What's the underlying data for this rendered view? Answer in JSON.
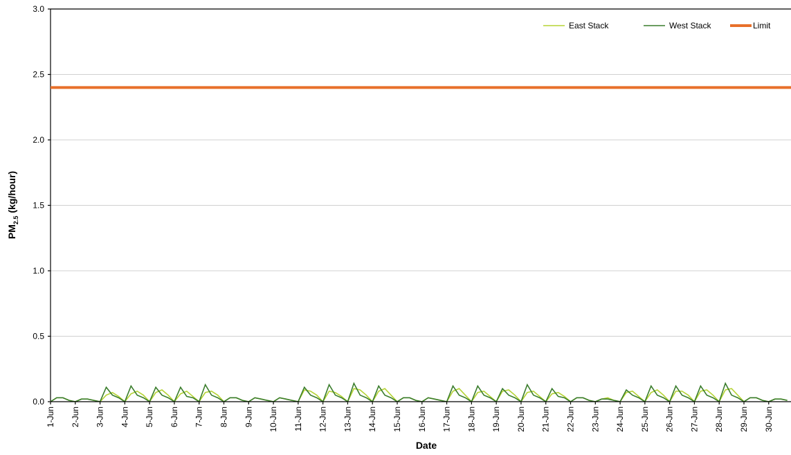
{
  "chart_data": {
    "type": "line",
    "x_label": "Date",
    "y_label": {
      "main": "PM",
      "sub": "2.5",
      "unit": "(kg/hour)"
    },
    "xlim": [
      1,
      30.9
    ],
    "ylim": [
      0,
      3
    ],
    "yticks": [
      {
        "value": 0,
        "label": "0.0"
      },
      0.5,
      {
        "value": 1,
        "label": "1.0"
      },
      1.5,
      {
        "value": 2,
        "label": "2.0"
      },
      2.5,
      {
        "value": 3,
        "label": "3.0"
      }
    ],
    "xticks": [
      {
        "value": 1,
        "label": "1-Jun"
      },
      {
        "value": 2,
        "label": "2-Jun"
      },
      {
        "value": 3,
        "label": "3-Jun"
      },
      {
        "value": 4,
        "label": "4-Jun"
      },
      {
        "value": 5,
        "label": "5-Jun"
      },
      {
        "value": 6,
        "label": "6-Jun"
      },
      {
        "value": 7,
        "label": "7-Jun"
      },
      {
        "value": 8,
        "label": "8-Jun"
      },
      {
        "value": 9,
        "label": "9-Jun"
      },
      {
        "value": 10,
        "label": "10-Jun"
      },
      {
        "value": 11,
        "label": "11-Jun"
      },
      {
        "value": 12,
        "label": "12-Jun"
      },
      {
        "value": 13,
        "label": "13-Jun"
      },
      {
        "value": 14,
        "label": "14-Jun"
      },
      {
        "value": 15,
        "label": "15-Jun"
      },
      {
        "value": 16,
        "label": "16-Jun"
      },
      {
        "value": 17,
        "label": "17-Jun"
      },
      {
        "value": 18,
        "label": "18-Jun"
      },
      {
        "value": 19,
        "label": "19-Jun"
      },
      {
        "value": 20,
        "label": "20-Jun"
      },
      {
        "value": 21,
        "label": "21-Jun"
      },
      {
        "value": 22,
        "label": "22-Jun"
      },
      {
        "value": 23,
        "label": "23-Jun"
      },
      {
        "value": 24,
        "label": "24-Jun"
      },
      {
        "value": 25,
        "label": "25-Jun"
      },
      {
        "value": 26,
        "label": "26-Jun"
      },
      {
        "value": 27,
        "label": "27-Jun"
      },
      {
        "value": 28,
        "label": "28-Jun"
      },
      {
        "value": 29,
        "label": "29-Jun"
      },
      {
        "value": 30,
        "label": "30-Jun"
      }
    ],
    "grid": true,
    "legend": "top-right",
    "x": [
      1,
      1.25,
      1.5,
      1.75,
      2,
      2.25,
      2.5,
      2.75,
      3,
      3.25,
      3.5,
      3.75,
      4,
      4.25,
      4.5,
      4.75,
      5,
      5.25,
      5.5,
      5.75,
      6,
      6.25,
      6.5,
      6.75,
      7,
      7.25,
      7.5,
      7.75,
      8,
      8.25,
      8.5,
      8.75,
      9,
      9.25,
      9.5,
      9.75,
      10,
      10.25,
      10.5,
      10.75,
      11,
      11.25,
      11.5,
      11.75,
      12,
      12.25,
      12.5,
      12.75,
      13,
      13.25,
      13.5,
      13.75,
      14,
      14.25,
      14.5,
      14.75,
      15,
      15.25,
      15.5,
      15.75,
      16,
      16.25,
      16.5,
      16.75,
      17,
      17.25,
      17.5,
      17.75,
      18,
      18.25,
      18.5,
      18.75,
      19,
      19.25,
      19.5,
      19.75,
      20,
      20.25,
      20.5,
      20.75,
      21,
      21.25,
      21.5,
      21.75,
      22,
      22.25,
      22.5,
      22.75,
      23,
      23.25,
      23.5,
      23.75,
      24,
      24.25,
      24.5,
      24.75,
      25,
      25.25,
      25.5,
      25.75,
      26,
      26.25,
      26.5,
      26.75,
      27,
      27.25,
      27.5,
      27.75,
      28,
      28.25,
      28.5,
      28.75,
      29,
      29.25,
      29.5,
      29.75,
      30,
      30.25,
      30.5,
      30.75
    ],
    "series": [
      {
        "name": "East Stack",
        "color": "#b5d334",
        "values": [
          0,
          0.03,
          0.03,
          0.01,
          0,
          0.02,
          0.02,
          0.01,
          0,
          0.05,
          0.07,
          0.04,
          0,
          0.06,
          0.08,
          0.05,
          0,
          0.07,
          0.09,
          0.05,
          0,
          0.06,
          0.08,
          0.04,
          0,
          0.07,
          0.08,
          0.05,
          0,
          0.03,
          0.03,
          0.01,
          0,
          0.03,
          0.02,
          0.01,
          0,
          0.03,
          0.02,
          0.01,
          0,
          0.09,
          0.08,
          0.05,
          0,
          0.08,
          0.07,
          0.04,
          0,
          0.1,
          0.09,
          0.05,
          0,
          0.08,
          0.1,
          0.05,
          0,
          0.03,
          0.03,
          0.01,
          0,
          0.03,
          0.02,
          0.01,
          0,
          0.08,
          0.1,
          0.05,
          0,
          0.07,
          0.08,
          0.04,
          0,
          0.08,
          0.09,
          0.05,
          0,
          0.07,
          0.08,
          0.04,
          0,
          0.06,
          0.07,
          0.04,
          0,
          0.03,
          0.03,
          0.01,
          0,
          0.02,
          0.03,
          0.01,
          0,
          0.07,
          0.08,
          0.04,
          0,
          0.07,
          0.09,
          0.05,
          0,
          0.08,
          0.08,
          0.05,
          0,
          0.08,
          0.09,
          0.05,
          0,
          0.09,
          0.1,
          0.05,
          0,
          0.03,
          0.03,
          0.01,
          0,
          0.02,
          0.02,
          0.01
        ]
      },
      {
        "name": "West Stack",
        "color": "#3a7d2c",
        "values": [
          0,
          0.03,
          0.03,
          0.01,
          0,
          0.02,
          0.02,
          0.01,
          0,
          0.11,
          0.05,
          0.03,
          0,
          0.12,
          0.05,
          0.03,
          0,
          0.11,
          0.05,
          0.03,
          0,
          0.11,
          0.04,
          0.03,
          0,
          0.13,
          0.05,
          0.03,
          0,
          0.03,
          0.03,
          0.01,
          0,
          0.03,
          0.02,
          0.01,
          0,
          0.03,
          0.02,
          0.01,
          0,
          0.11,
          0.05,
          0.03,
          0,
          0.13,
          0.05,
          0.03,
          0,
          0.14,
          0.05,
          0.03,
          0,
          0.12,
          0.05,
          0.03,
          0,
          0.03,
          0.03,
          0.01,
          0,
          0.03,
          0.02,
          0.01,
          0,
          0.12,
          0.05,
          0.03,
          0,
          0.12,
          0.05,
          0.03,
          0,
          0.1,
          0.05,
          0.03,
          0,
          0.13,
          0.05,
          0.03,
          0,
          0.1,
          0.04,
          0.03,
          0,
          0.03,
          0.03,
          0.01,
          0,
          0.02,
          0.02,
          0.01,
          0,
          0.09,
          0.05,
          0.03,
          0,
          0.12,
          0.05,
          0.03,
          0,
          0.12,
          0.05,
          0.03,
          0,
          0.12,
          0.05,
          0.03,
          0,
          0.14,
          0.05,
          0.03,
          0,
          0.03,
          0.03,
          0.01,
          0,
          0.02,
          0.02,
          0.01
        ]
      }
    ],
    "limit": {
      "name": "Limit",
      "color": "#e8702a",
      "value": 2.4
    }
  }
}
